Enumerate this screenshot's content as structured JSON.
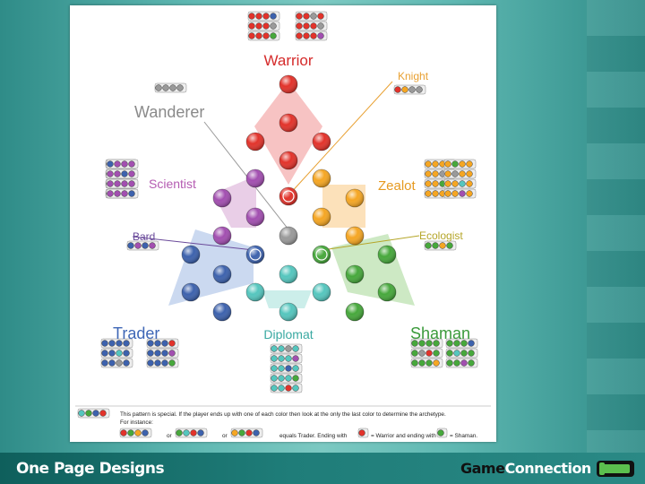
{
  "labels": {
    "warrior": "Warrior",
    "knight": "Knight",
    "wanderer": "Wanderer",
    "scientist": "Scientist",
    "zealot": "Zealot",
    "bard": "Bard",
    "ecologist": "Ecologist",
    "trader": "Trader",
    "diplomat": "Diplomat",
    "shaman": "Shaman"
  },
  "legend": {
    "line1": "This pattern is special. If the player ends up with one of each color then look at the only the last color to determine the archetype.",
    "line2": "For instance:",
    "or1": "or",
    "or2": "or",
    "equals": "equals Trader. Ending with",
    "warrior_part": "= Warrior and ending with",
    "shaman_part": "= Shaman."
  },
  "footer": {
    "left": "One Page Designs",
    "right_game": "Game",
    "right_connection": "Connection"
  },
  "colors": {
    "red": "#e2332b",
    "orange": "#f5a623",
    "green": "#47a83c",
    "teal": "#55c6be",
    "blue": "#3d62ad",
    "purple": "#a24fb0",
    "gray": "#9a9a9a",
    "warrior_text": "#d52b2b",
    "knight_text": "#e8a031",
    "wanderer_text": "#8a8a8a",
    "scientist_text": "#b55cb2",
    "zealot_text": "#e69a20",
    "bard_text": "#6a4a9a",
    "ecologist_text": "#b5a629",
    "trader_text": "#3f67b6",
    "diplomat_text": "#3aa9a2",
    "shaman_text": "#3a9a3a"
  }
}
